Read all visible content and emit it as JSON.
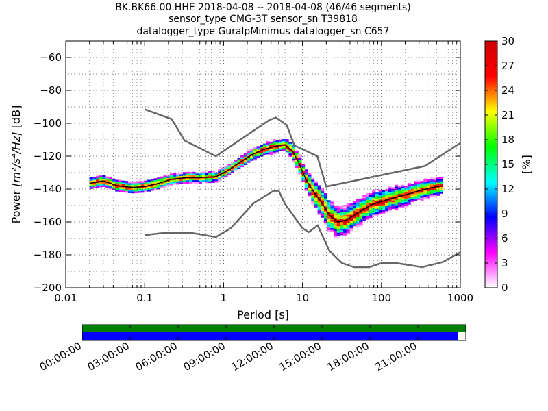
{
  "title_lines": [
    "BK.BK66.00.HHE   2018-04-08 -- 2018-04-08  (46/46 segments)",
    "sensor_type CMG-3T sensor_sn T39818",
    "datalogger_type GuralpMinimus datalogger_sn C657"
  ],
  "chart_data": {
    "type": "heatmap",
    "xlabel": "Period [s]",
    "ylabel_prefix": "Power ",
    "ylabel_math": "[m²/s⁴/Hz]",
    "ylabel_suffix": " [dB]",
    "xscale": "log",
    "xlim": [
      0.01,
      1000
    ],
    "ylim": [
      -200,
      -50
    ],
    "x_ticks": [
      {
        "v": 0.01,
        "label": "0.01"
      },
      {
        "v": 0.1,
        "label": "0.1"
      },
      {
        "v": 1,
        "label": "1"
      },
      {
        "v": 10,
        "label": "10"
      },
      {
        "v": 100,
        "label": "100"
      },
      {
        "v": 1000,
        "label": "1000"
      }
    ],
    "y_ticks": [
      {
        "v": -60,
        "label": "−60"
      },
      {
        "v": -80,
        "label": "−80"
      },
      {
        "v": -100,
        "label": "−100"
      },
      {
        "v": -120,
        "label": "−120"
      },
      {
        "v": -140,
        "label": "−140"
      },
      {
        "v": -160,
        "label": "−160"
      },
      {
        "v": -180,
        "label": "−180"
      },
      {
        "v": -200,
        "label": "−200"
      }
    ],
    "grid": true,
    "colorbar": {
      "label": "[%]",
      "min": 0,
      "max": 30,
      "ticks": [
        "30",
        "27",
        "24",
        "21",
        "18",
        "15",
        "12",
        "9",
        "6",
        "3",
        "0"
      ],
      "colors": [
        "#ffffff",
        "#ff00ff",
        "#0000ff",
        "#00ffff",
        "#00ff00",
        "#ffff00",
        "#ff0000",
        "#cc0000"
      ]
    },
    "noise_model_color": "#666666",
    "new_high_noise_model": [
      [
        0.1,
        -91.5
      ],
      [
        0.22,
        -97.4
      ],
      [
        0.32,
        -110.5
      ],
      [
        0.8,
        -120
      ],
      [
        3.8,
        -98
      ],
      [
        4.6,
        -96.5
      ],
      [
        6.3,
        -101
      ],
      [
        7.9,
        -113.5
      ],
      [
        15.4,
        -120
      ],
      [
        20,
        -138.5
      ],
      [
        354.8,
        -126
      ],
      [
        1000,
        -112
      ]
    ],
    "new_low_noise_model": [
      [
        0.1,
        -168
      ],
      [
        0.17,
        -166.7
      ],
      [
        0.4,
        -166.7
      ],
      [
        0.8,
        -169.2
      ],
      [
        1.24,
        -163.7
      ],
      [
        2.4,
        -148.6
      ],
      [
        4.3,
        -141.1
      ],
      [
        5,
        -141.1
      ],
      [
        6,
        -149
      ],
      [
        10,
        -163.8
      ],
      [
        12,
        -166.2
      ],
      [
        15.6,
        -162.1
      ],
      [
        21.9,
        -177.5
      ],
      [
        31.6,
        -185
      ],
      [
        45,
        -187.5
      ],
      [
        70,
        -187.5
      ],
      [
        101,
        -185
      ],
      [
        154,
        -185
      ],
      [
        328,
        -187.5
      ],
      [
        600,
        -184.4
      ],
      [
        1000,
        -178.4
      ]
    ],
    "psd_mode": {
      "color": "#000000",
      "points": [
        [
          0.02,
          -136.5
        ],
        [
          0.03,
          -135
        ],
        [
          0.045,
          -138
        ],
        [
          0.07,
          -139
        ],
        [
          0.1,
          -138.5
        ],
        [
          0.15,
          -136.5
        ],
        [
          0.22,
          -134
        ],
        [
          0.35,
          -133
        ],
        [
          0.5,
          -133
        ],
        [
          0.8,
          -132.5
        ],
        [
          1.1,
          -129
        ],
        [
          1.6,
          -124
        ],
        [
          2.3,
          -119
        ],
        [
          3.2,
          -116
        ],
        [
          4.5,
          -114
        ],
        [
          6,
          -113
        ],
        [
          7.5,
          -117
        ],
        [
          9,
          -124
        ],
        [
          11,
          -134
        ],
        [
          14,
          -142
        ],
        [
          18,
          -149
        ],
        [
          22,
          -156
        ],
        [
          28,
          -160
        ],
        [
          35,
          -159
        ],
        [
          45,
          -156
        ],
        [
          60,
          -152
        ],
        [
          80,
          -149
        ],
        [
          110,
          -147
        ],
        [
          150,
          -145
        ],
        [
          220,
          -143
        ],
        [
          300,
          -141
        ],
        [
          450,
          -139
        ],
        [
          600,
          -138
        ]
      ]
    },
    "density_halfwidth": [
      [
        0.02,
        2.5
      ],
      [
        0.1,
        2.5
      ],
      [
        0.5,
        2
      ],
      [
        2,
        2.5
      ],
      [
        6,
        3
      ],
      [
        10,
        5
      ],
      [
        20,
        9
      ],
      [
        30,
        8
      ],
      [
        60,
        7
      ],
      [
        150,
        6
      ],
      [
        600,
        4
      ]
    ]
  },
  "coverage": {
    "time_labels": [
      "00:00:00",
      "03:00:00",
      "06:00:00",
      "09:00:00",
      "12:00:00",
      "15:00:00",
      "18:00:00",
      "21:00:00"
    ],
    "top_bar_color": "#008000",
    "bottom_bar_color": "#0000ff",
    "data_fraction": 0.979
  }
}
